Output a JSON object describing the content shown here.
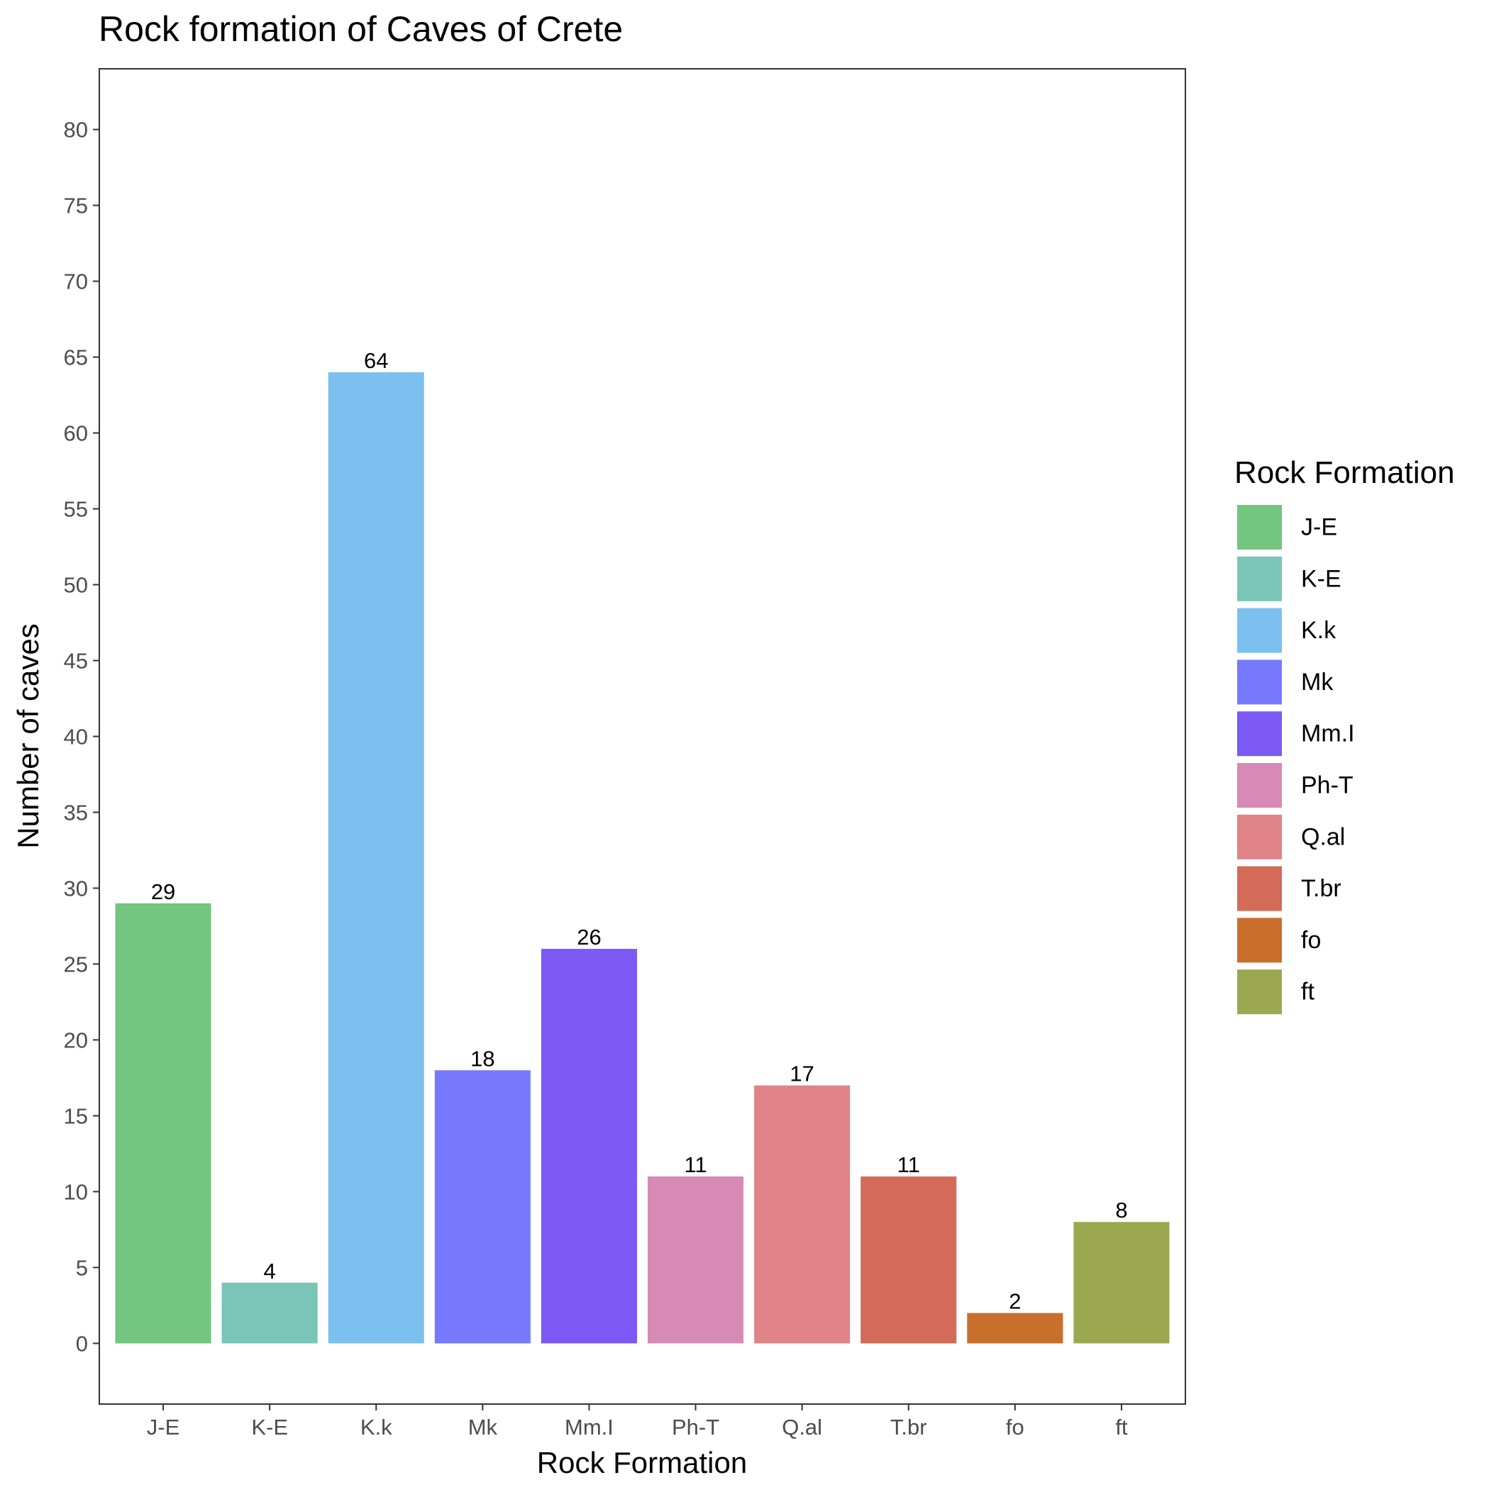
{
  "chart_data": {
    "type": "bar",
    "title": "Rock formation of Caves of Crete",
    "xlabel": "Rock Formation",
    "ylabel": "Number of caves",
    "categories": [
      "J-E",
      "K-E",
      "K.k",
      "Mk",
      "Mm.I",
      "Ph-T",
      "Q.al",
      "T.br",
      "fo",
      "ft"
    ],
    "values": [
      29,
      4,
      64,
      18,
      26,
      11,
      17,
      11,
      2,
      8
    ],
    "colors": [
      "#73C57F",
      "#7AC4B8",
      "#7BC0EE",
      "#7779FD",
      "#7C59F4",
      "#D88AB6",
      "#E08386",
      "#D46A58",
      "#C86F2B",
      "#9BA84F"
    ],
    "ylim": [
      -4,
      84
    ],
    "yticks": [
      0,
      5,
      10,
      15,
      20,
      25,
      30,
      35,
      40,
      45,
      50,
      55,
      60,
      65,
      70,
      75,
      80
    ],
    "grid": false,
    "legend": {
      "title": "Rock Formation",
      "position": "right",
      "entries": [
        "J-E",
        "K-E",
        "K.k",
        "Mk",
        "Mm.I",
        "Ph-T",
        "Q.al",
        "T.br",
        "fo",
        "ft"
      ]
    }
  }
}
